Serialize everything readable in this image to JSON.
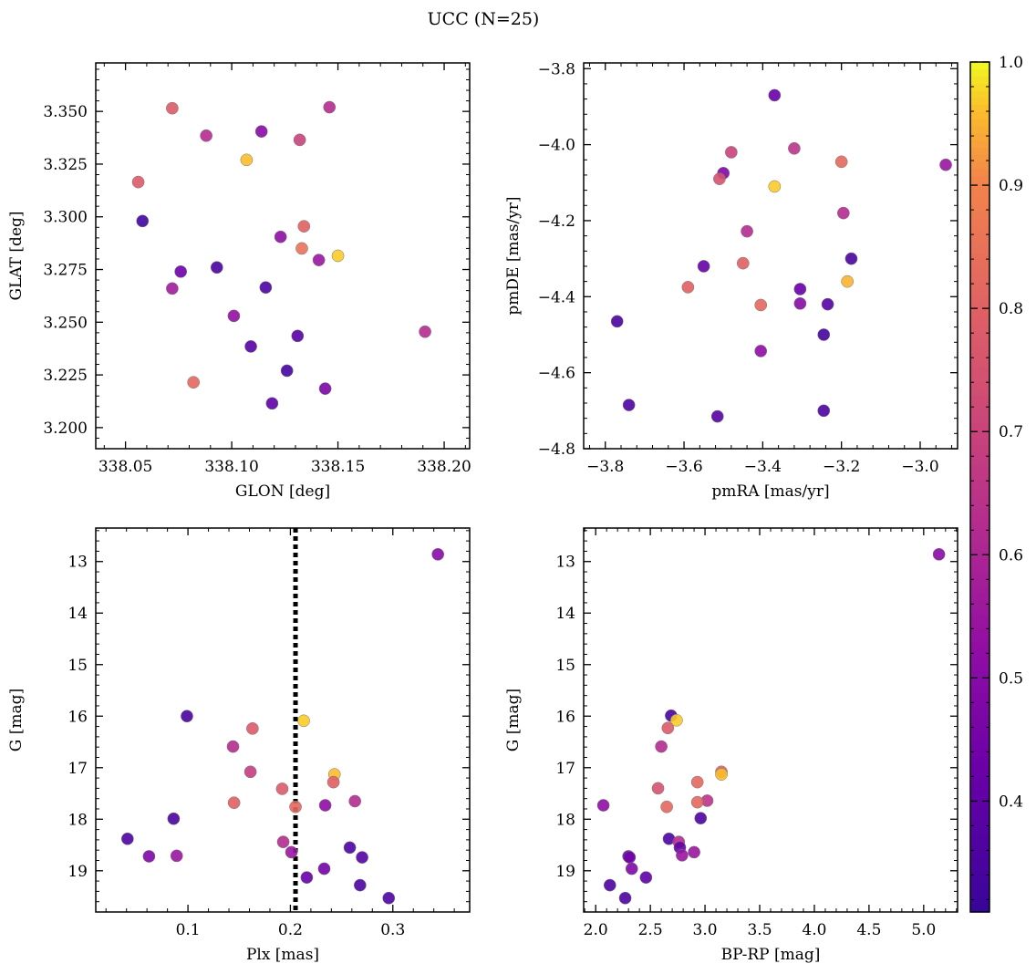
{
  "figure": {
    "title": "UCC (N=25)"
  },
  "colorbar": {
    "cmap": "plasma",
    "range": [
      0.31,
      1.0
    ],
    "ticks": [
      0.4,
      0.5,
      0.6,
      0.7,
      0.8,
      0.9,
      1.0
    ],
    "tick_labels": [
      "0.4",
      "0.5",
      "0.6",
      "0.7",
      "0.8",
      "0.9",
      "1.0"
    ]
  },
  "chart_data": [
    {
      "type": "scatter",
      "panel": "top-left",
      "xlabel": "GLON [deg]",
      "ylabel": "GLAT [deg]",
      "xlim": [
        338.036,
        338.212
      ],
      "ylim": [
        3.19,
        3.373
      ],
      "invert_y": false,
      "xticks": [
        338.05,
        338.1,
        338.15,
        338.2
      ],
      "xtick_labels": [
        "338.05",
        "338.10",
        "338.15",
        "338.20"
      ],
      "yticks": [
        3.2,
        3.225,
        3.25,
        3.275,
        3.3,
        3.325,
        3.35
      ],
      "ytick_labels": [
        "3.200",
        "3.225",
        "3.250",
        "3.275",
        "3.300",
        "3.325",
        "3.350"
      ],
      "points": [
        {
          "x": 338.072,
          "y": 3.3515,
          "c": 0.78
        },
        {
          "x": 338.146,
          "y": 3.352,
          "c": 0.62
        },
        {
          "x": 338.088,
          "y": 3.3385,
          "c": 0.62
        },
        {
          "x": 338.114,
          "y": 3.3405,
          "c": 0.5
        },
        {
          "x": 338.132,
          "y": 3.3365,
          "c": 0.7
        },
        {
          "x": 338.107,
          "y": 3.327,
          "c": 0.96
        },
        {
          "x": 338.056,
          "y": 3.3165,
          "c": 0.78
        },
        {
          "x": 338.058,
          "y": 3.298,
          "c": 0.33
        },
        {
          "x": 338.134,
          "y": 3.2955,
          "c": 0.8
        },
        {
          "x": 338.123,
          "y": 3.2905,
          "c": 0.52
        },
        {
          "x": 338.133,
          "y": 3.285,
          "c": 0.85
        },
        {
          "x": 338.15,
          "y": 3.2815,
          "c": 0.97
        },
        {
          "x": 338.141,
          "y": 3.2795,
          "c": 0.55
        },
        {
          "x": 338.093,
          "y": 3.276,
          "c": 0.35
        },
        {
          "x": 338.076,
          "y": 3.274,
          "c": 0.43
        },
        {
          "x": 338.072,
          "y": 3.266,
          "c": 0.57
        },
        {
          "x": 338.116,
          "y": 3.2665,
          "c": 0.36
        },
        {
          "x": 338.101,
          "y": 3.253,
          "c": 0.53
        },
        {
          "x": 338.191,
          "y": 3.2455,
          "c": 0.62
        },
        {
          "x": 338.131,
          "y": 3.2435,
          "c": 0.38
        },
        {
          "x": 338.109,
          "y": 3.2385,
          "c": 0.38
        },
        {
          "x": 338.126,
          "y": 3.227,
          "c": 0.34
        },
        {
          "x": 338.082,
          "y": 3.2215,
          "c": 0.82
        },
        {
          "x": 338.144,
          "y": 3.2185,
          "c": 0.47
        },
        {
          "x": 338.119,
          "y": 3.2115,
          "c": 0.4
        }
      ]
    },
    {
      "type": "scatter",
      "panel": "top-right",
      "xlabel": "pmRA [mas/yr]",
      "ylabel": "pmDE [mas/yr]",
      "xlim": [
        -3.855,
        -2.905
      ],
      "ylim": [
        -4.8,
        -3.785
      ],
      "invert_y": false,
      "xticks": [
        -3.8,
        -3.6,
        -3.4,
        -3.2,
        -3.0
      ],
      "xtick_labels": [
        "−3.8",
        "−3.6",
        "−3.4",
        "−3.2",
        "−3.0"
      ],
      "yticks": [
        -4.8,
        -4.6,
        -4.4,
        -4.2,
        -4.0,
        -3.8
      ],
      "ytick_labels": [
        "−4.8",
        "−4.6",
        "−4.4",
        "−4.2",
        "−4.0",
        "−3.8"
      ],
      "points": [
        {
          "x": -3.37,
          "y": -3.87,
          "c": 0.42
        },
        {
          "x": -3.48,
          "y": -4.02,
          "c": 0.7
        },
        {
          "x": -3.32,
          "y": -4.01,
          "c": 0.65
        },
        {
          "x": -3.2,
          "y": -4.045,
          "c": 0.82
        },
        {
          "x": -2.935,
          "y": -4.053,
          "c": 0.55
        },
        {
          "x": -3.5,
          "y": -4.075,
          "c": 0.48
        },
        {
          "x": -3.51,
          "y": -4.09,
          "c": 0.75
        },
        {
          "x": -3.37,
          "y": -4.11,
          "c": 0.97
        },
        {
          "x": -3.195,
          "y": -4.18,
          "c": 0.62
        },
        {
          "x": -3.44,
          "y": -4.228,
          "c": 0.62
        },
        {
          "x": -3.175,
          "y": -4.3,
          "c": 0.35
        },
        {
          "x": -3.45,
          "y": -4.312,
          "c": 0.8
        },
        {
          "x": -3.55,
          "y": -4.32,
          "c": 0.41
        },
        {
          "x": -3.185,
          "y": -4.36,
          "c": 0.95
        },
        {
          "x": -3.59,
          "y": -4.375,
          "c": 0.8
        },
        {
          "x": -3.305,
          "y": -4.38,
          "c": 0.42
        },
        {
          "x": -3.305,
          "y": -4.418,
          "c": 0.5
        },
        {
          "x": -3.235,
          "y": -4.42,
          "c": 0.38
        },
        {
          "x": -3.405,
          "y": -4.422,
          "c": 0.82
        },
        {
          "x": -3.77,
          "y": -4.465,
          "c": 0.35
        },
        {
          "x": -3.245,
          "y": -4.5,
          "c": 0.34
        },
        {
          "x": -3.405,
          "y": -4.543,
          "c": 0.52
        },
        {
          "x": -3.74,
          "y": -4.685,
          "c": 0.36
        },
        {
          "x": -3.245,
          "y": -4.7,
          "c": 0.36
        },
        {
          "x": -3.515,
          "y": -4.715,
          "c": 0.38
        }
      ]
    },
    {
      "type": "scatter",
      "panel": "bottom-left",
      "xlabel": "Plx [mas]",
      "ylabel": "G [mag]",
      "xlim": [
        0.01,
        0.375
      ],
      "ylim": [
        19.8,
        12.35
      ],
      "invert_y": true,
      "vline": 0.205,
      "xticks": [
        0.1,
        0.2,
        0.3
      ],
      "xtick_labels": [
        "0.1",
        "0.2",
        "0.3"
      ],
      "yticks": [
        13,
        14,
        15,
        16,
        17,
        18,
        19
      ],
      "ytick_labels": [
        "13",
        "14",
        "15",
        "16",
        "17",
        "18",
        "19"
      ],
      "points": [
        {
          "x": 0.344,
          "y": 12.86,
          "c": 0.5
        },
        {
          "x": 0.099,
          "y": 16.0,
          "c": 0.35
        },
        {
          "x": 0.163,
          "y": 16.24,
          "c": 0.78
        },
        {
          "x": 0.213,
          "y": 16.09,
          "c": 0.97
        },
        {
          "x": 0.144,
          "y": 16.59,
          "c": 0.62
        },
        {
          "x": 0.161,
          "y": 17.08,
          "c": 0.68
        },
        {
          "x": 0.243,
          "y": 17.13,
          "c": 0.96
        },
        {
          "x": 0.242,
          "y": 17.28,
          "c": 0.8
        },
        {
          "x": 0.192,
          "y": 17.41,
          "c": 0.78
        },
        {
          "x": 0.263,
          "y": 17.65,
          "c": 0.62
        },
        {
          "x": 0.145,
          "y": 17.68,
          "c": 0.8
        },
        {
          "x": 0.234,
          "y": 17.73,
          "c": 0.52
        },
        {
          "x": 0.205,
          "y": 17.76,
          "c": 0.82
        },
        {
          "x": 0.086,
          "y": 17.99,
          "c": 0.35
        },
        {
          "x": 0.041,
          "y": 18.38,
          "c": 0.36
        },
        {
          "x": 0.193,
          "y": 18.44,
          "c": 0.62
        },
        {
          "x": 0.258,
          "y": 18.55,
          "c": 0.36
        },
        {
          "x": 0.201,
          "y": 18.64,
          "c": 0.55
        },
        {
          "x": 0.062,
          "y": 18.72,
          "c": 0.48
        },
        {
          "x": 0.089,
          "y": 18.71,
          "c": 0.55
        },
        {
          "x": 0.27,
          "y": 18.74,
          "c": 0.38
        },
        {
          "x": 0.233,
          "y": 18.96,
          "c": 0.45
        },
        {
          "x": 0.216,
          "y": 19.13,
          "c": 0.42
        },
        {
          "x": 0.268,
          "y": 19.28,
          "c": 0.36
        },
        {
          "x": 0.296,
          "y": 19.53,
          "c": 0.36
        }
      ]
    },
    {
      "type": "scatter",
      "panel": "bottom-right",
      "xlabel": "BP-RP [mag]",
      "ylabel": "G [mag]",
      "xlim": [
        1.89,
        5.31
      ],
      "ylim": [
        19.8,
        12.35
      ],
      "invert_y": true,
      "xticks": [
        2.0,
        2.5,
        3.0,
        3.5,
        4.0,
        4.5,
        5.0
      ],
      "xtick_labels": [
        "2.0",
        "2.5",
        "3.0",
        "3.5",
        "4.0",
        "4.5",
        "5.0"
      ],
      "yticks": [
        13,
        14,
        15,
        16,
        17,
        18,
        19
      ],
      "ytick_labels": [
        "13",
        "14",
        "15",
        "16",
        "17",
        "18",
        "19"
      ],
      "points": [
        {
          "x": 5.14,
          "y": 12.86,
          "c": 0.5
        },
        {
          "x": 2.69,
          "y": 15.99,
          "c": 0.35
        },
        {
          "x": 2.74,
          "y": 16.08,
          "c": 0.97
        },
        {
          "x": 2.66,
          "y": 16.23,
          "c": 0.78
        },
        {
          "x": 2.6,
          "y": 16.59,
          "c": 0.62
        },
        {
          "x": 3.15,
          "y": 17.08,
          "c": 0.8
        },
        {
          "x": 3.15,
          "y": 17.13,
          "c": 0.96
        },
        {
          "x": 2.93,
          "y": 17.28,
          "c": 0.82
        },
        {
          "x": 2.57,
          "y": 17.4,
          "c": 0.75
        },
        {
          "x": 3.02,
          "y": 17.64,
          "c": 0.65
        },
        {
          "x": 2.93,
          "y": 17.67,
          "c": 0.82
        },
        {
          "x": 2.07,
          "y": 17.73,
          "c": 0.52
        },
        {
          "x": 2.65,
          "y": 17.76,
          "c": 0.82
        },
        {
          "x": 2.96,
          "y": 17.98,
          "c": 0.36
        },
        {
          "x": 2.67,
          "y": 18.38,
          "c": 0.36
        },
        {
          "x": 2.76,
          "y": 18.44,
          "c": 0.62
        },
        {
          "x": 2.77,
          "y": 18.55,
          "c": 0.4
        },
        {
          "x": 2.9,
          "y": 18.64,
          "c": 0.55
        },
        {
          "x": 2.79,
          "y": 18.7,
          "c": 0.55
        },
        {
          "x": 2.3,
          "y": 18.72,
          "c": 0.38
        },
        {
          "x": 2.31,
          "y": 18.74,
          "c": 0.45
        },
        {
          "x": 2.33,
          "y": 18.96,
          "c": 0.48
        },
        {
          "x": 2.46,
          "y": 19.13,
          "c": 0.4
        },
        {
          "x": 2.13,
          "y": 19.28,
          "c": 0.36
        },
        {
          "x": 2.27,
          "y": 19.53,
          "c": 0.36
        }
      ]
    }
  ]
}
